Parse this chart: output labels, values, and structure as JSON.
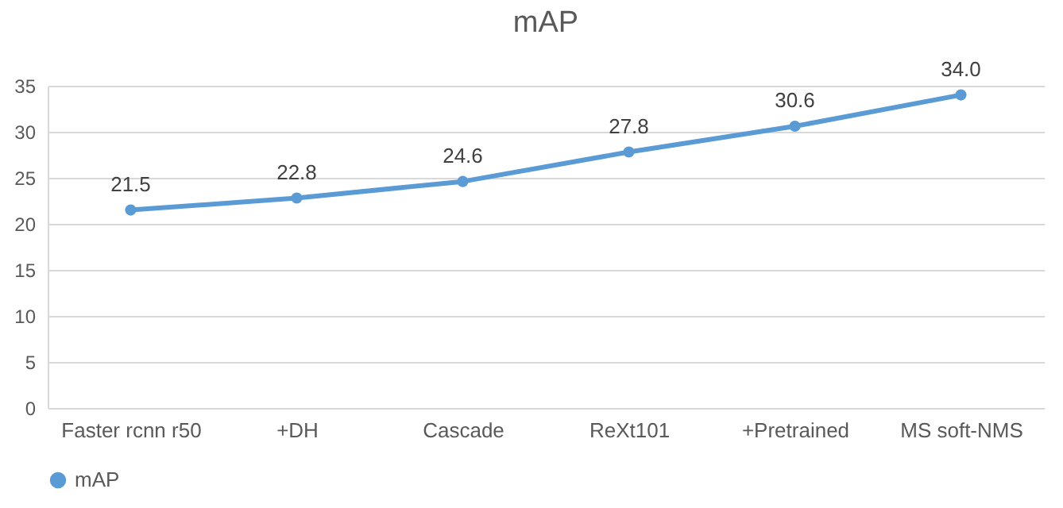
{
  "chart_data": {
    "type": "line",
    "title": "mAP",
    "categories": [
      "Faster rcnn r50",
      "+DH",
      "Cascade",
      "ReXt101",
      "+Pretrained",
      "MS soft-NMS"
    ],
    "series": [
      {
        "name": "mAP",
        "color": "#5b9bd5",
        "values": [
          21.5,
          22.8,
          24.6,
          27.8,
          30.6,
          34.0
        ],
        "value_labels": [
          "21.5",
          "22.8",
          "24.6",
          "27.8",
          "30.6",
          "34.0"
        ]
      }
    ],
    "ylim": [
      0,
      35
    ],
    "yticks": [
      0,
      5,
      10,
      15,
      20,
      25,
      30,
      35
    ],
    "grid": "y",
    "legend": "bottom",
    "marker": "circle",
    "line_style": "solid"
  }
}
